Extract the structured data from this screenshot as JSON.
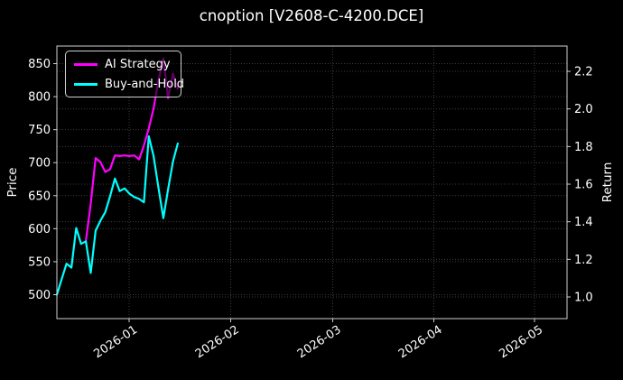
{
  "chart_data": {
    "type": "line",
    "title": "cnoption [V2608-C-4200.DCE]",
    "ylabel_left": "Price",
    "ylabel_right": "Return",
    "x_tick_labels": [
      "2026-01",
      "2026-02",
      "2026-03",
      "2026-04",
      "2026-05"
    ],
    "y_left_ticks": [
      850,
      800,
      750,
      700,
      650,
      600,
      550,
      500
    ],
    "y_right_ticks": [
      "2.2",
      "2.0",
      "1.8",
      "1.6",
      "1.4",
      "1.2",
      "1.0"
    ],
    "y_left_range": [
      464,
      877
    ],
    "y_right_range": [
      0.89,
      2.33
    ],
    "grid": "dotted both axes",
    "legend_position": "upper-left",
    "colors": {
      "background": "#000000",
      "text": "#ffffff",
      "spine": "#cfcfcf",
      "grid": "#3d3d3d",
      "ai_strategy": "#ff00ff",
      "buy_and_hold": "#00ffff"
    },
    "series": [
      {
        "name": "AI Strategy",
        "color": "#ff00ff",
        "dates": [
          "2025-12-19",
          "2025-12-22",
          "2025-12-23",
          "2025-12-24",
          "2025-12-25",
          "2025-12-26",
          "2025-12-29",
          "2025-12-30",
          "2025-12-31",
          "2026-01-02",
          "2026-01-05",
          "2026-01-06",
          "2026-01-07",
          "2026-01-08",
          "2026-01-09",
          "2026-01-12",
          "2026-01-13",
          "2026-01-14",
          "2026-01-15",
          "2026-01-16"
        ],
        "values": [
          581,
          638,
          707,
          701,
          686,
          690,
          711,
          710,
          711,
          710,
          711,
          705,
          726,
          752,
          782,
          825,
          858,
          798,
          835,
          812
        ]
      },
      {
        "name": "Buy-and-Hold",
        "color": "#00ffff",
        "dates": [
          "2025-12-11",
          "2025-12-12",
          "2025-12-15",
          "2025-12-16",
          "2025-12-17",
          "2025-12-18",
          "2025-12-19",
          "2025-12-22",
          "2025-12-23",
          "2025-12-24",
          "2025-12-25",
          "2025-12-26",
          "2025-12-29",
          "2025-12-30",
          "2025-12-31",
          "2026-01-02",
          "2026-01-05",
          "2026-01-06",
          "2026-01-07",
          "2026-01-08",
          "2026-01-09",
          "2026-01-12",
          "2026-01-13",
          "2026-01-14",
          "2026-01-15",
          "2026-01-16"
        ],
        "values": [
          500,
          524,
          547,
          541,
          601,
          577,
          581,
          533,
          597,
          612,
          625,
          649,
          676,
          657,
          661,
          653,
          648,
          645,
          640,
          740,
          710,
          662,
          616,
          660,
          702,
          729
        ]
      }
    ],
    "x_sessions": [
      "2025-12-11",
      "2025-12-12",
      "2025-12-15",
      "2025-12-16",
      "2025-12-17",
      "2025-12-18",
      "2025-12-19",
      "2025-12-22",
      "2025-12-23",
      "2025-12-24",
      "2025-12-25",
      "2025-12-26",
      "2025-12-29",
      "2025-12-30",
      "2025-12-31",
      "2026-01-02",
      "2026-01-05",
      "2026-01-06",
      "2026-01-07",
      "2026-01-08",
      "2026-01-09",
      "2026-01-12",
      "2026-01-13",
      "2026-01-14",
      "2026-01-15",
      "2026-01-16"
    ]
  }
}
